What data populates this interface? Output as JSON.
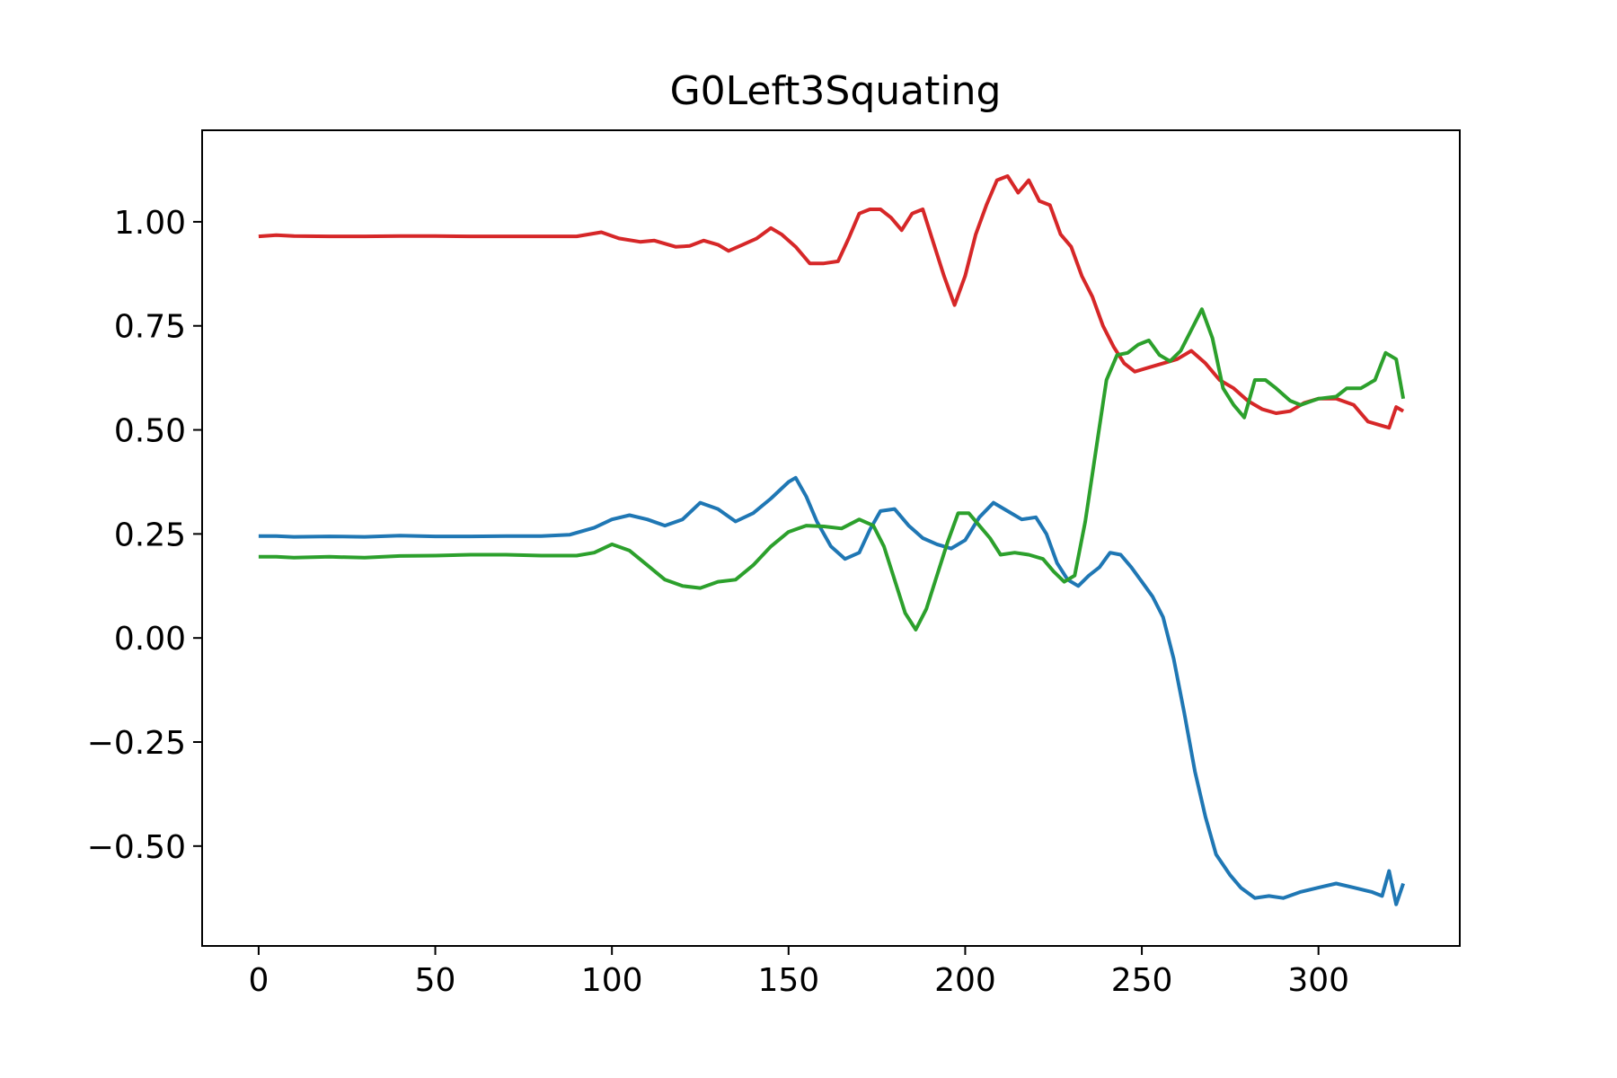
{
  "chart_data": {
    "type": "line",
    "title": "G0Left3Squating",
    "xlabel": "",
    "ylabel": "",
    "xlim": [
      -16,
      340
    ],
    "ylim": [
      -0.74,
      1.22
    ],
    "xticks": [
      0,
      50,
      100,
      150,
      200,
      250,
      300
    ],
    "xtick_labels": [
      "0",
      "50",
      "100",
      "150",
      "200",
      "250",
      "300"
    ],
    "yticks": [
      -0.5,
      -0.25,
      0.0,
      0.25,
      0.5,
      0.75,
      1.0
    ],
    "ytick_labels": [
      "−0.50",
      "−0.25",
      "0.00",
      "0.25",
      "0.50",
      "0.75",
      "1.00"
    ],
    "grid": false,
    "series": [
      {
        "color": "#1f77b4",
        "points": [
          [
            0,
            0.245
          ],
          [
            5,
            0.245
          ],
          [
            10,
            0.243
          ],
          [
            20,
            0.244
          ],
          [
            30,
            0.243
          ],
          [
            40,
            0.246
          ],
          [
            50,
            0.244
          ],
          [
            60,
            0.244
          ],
          [
            70,
            0.245
          ],
          [
            80,
            0.245
          ],
          [
            88,
            0.248
          ],
          [
            95,
            0.265
          ],
          [
            100,
            0.285
          ],
          [
            105,
            0.295
          ],
          [
            110,
            0.285
          ],
          [
            115,
            0.27
          ],
          [
            120,
            0.285
          ],
          [
            125,
            0.325
          ],
          [
            130,
            0.31
          ],
          [
            135,
            0.28
          ],
          [
            140,
            0.3
          ],
          [
            145,
            0.335
          ],
          [
            150,
            0.375
          ],
          [
            152,
            0.385
          ],
          [
            155,
            0.34
          ],
          [
            158,
            0.28
          ],
          [
            162,
            0.22
          ],
          [
            166,
            0.19
          ],
          [
            170,
            0.205
          ],
          [
            173,
            0.26
          ],
          [
            176,
            0.305
          ],
          [
            180,
            0.31
          ],
          [
            184,
            0.27
          ],
          [
            188,
            0.24
          ],
          [
            192,
            0.225
          ],
          [
            196,
            0.215
          ],
          [
            200,
            0.235
          ],
          [
            204,
            0.29
          ],
          [
            208,
            0.325
          ],
          [
            212,
            0.305
          ],
          [
            216,
            0.285
          ],
          [
            220,
            0.29
          ],
          [
            223,
            0.25
          ],
          [
            226,
            0.18
          ],
          [
            229,
            0.14
          ],
          [
            232,
            0.125
          ],
          [
            235,
            0.15
          ],
          [
            238,
            0.17
          ],
          [
            241,
            0.205
          ],
          [
            244,
            0.2
          ],
          [
            247,
            0.17
          ],
          [
            250,
            0.135
          ],
          [
            253,
            0.1
          ],
          [
            256,
            0.05
          ],
          [
            259,
            -0.05
          ],
          [
            262,
            -0.18
          ],
          [
            265,
            -0.32
          ],
          [
            268,
            -0.43
          ],
          [
            271,
            -0.52
          ],
          [
            275,
            -0.57
          ],
          [
            278,
            -0.6
          ],
          [
            282,
            -0.625
          ],
          [
            286,
            -0.62
          ],
          [
            290,
            -0.625
          ],
          [
            295,
            -0.61
          ],
          [
            300,
            -0.6
          ],
          [
            305,
            -0.59
          ],
          [
            310,
            -0.6
          ],
          [
            315,
            -0.61
          ],
          [
            318,
            -0.62
          ],
          [
            320,
            -0.56
          ],
          [
            322,
            -0.64
          ],
          [
            324,
            -0.59
          ]
        ]
      },
      {
        "color": "#d62728",
        "points": [
          [
            0,
            0.965
          ],
          [
            5,
            0.968
          ],
          [
            10,
            0.966
          ],
          [
            20,
            0.965
          ],
          [
            30,
            0.965
          ],
          [
            40,
            0.966
          ],
          [
            50,
            0.966
          ],
          [
            60,
            0.965
          ],
          [
            70,
            0.965
          ],
          [
            80,
            0.965
          ],
          [
            90,
            0.965
          ],
          [
            97,
            0.975
          ],
          [
            102,
            0.96
          ],
          [
            108,
            0.952
          ],
          [
            112,
            0.955
          ],
          [
            118,
            0.94
          ],
          [
            122,
            0.942
          ],
          [
            126,
            0.955
          ],
          [
            130,
            0.945
          ],
          [
            133,
            0.93
          ],
          [
            137,
            0.945
          ],
          [
            141,
            0.96
          ],
          [
            145,
            0.985
          ],
          [
            148,
            0.97
          ],
          [
            152,
            0.94
          ],
          [
            156,
            0.9
          ],
          [
            160,
            0.9
          ],
          [
            164,
            0.905
          ],
          [
            167,
            0.96
          ],
          [
            170,
            1.02
          ],
          [
            173,
            1.03
          ],
          [
            176,
            1.03
          ],
          [
            179,
            1.01
          ],
          [
            182,
            0.98
          ],
          [
            185,
            1.02
          ],
          [
            188,
            1.03
          ],
          [
            191,
            0.95
          ],
          [
            194,
            0.87
          ],
          [
            197,
            0.8
          ],
          [
            200,
            0.87
          ],
          [
            203,
            0.97
          ],
          [
            206,
            1.04
          ],
          [
            209,
            1.1
          ],
          [
            212,
            1.11
          ],
          [
            215,
            1.07
          ],
          [
            218,
            1.1
          ],
          [
            221,
            1.05
          ],
          [
            224,
            1.04
          ],
          [
            227,
            0.97
          ],
          [
            230,
            0.94
          ],
          [
            233,
            0.87
          ],
          [
            236,
            0.82
          ],
          [
            239,
            0.75
          ],
          [
            242,
            0.7
          ],
          [
            245,
            0.66
          ],
          [
            248,
            0.64
          ],
          [
            252,
            0.65
          ],
          [
            256,
            0.66
          ],
          [
            260,
            0.67
          ],
          [
            264,
            0.69
          ],
          [
            268,
            0.66
          ],
          [
            272,
            0.62
          ],
          [
            276,
            0.6
          ],
          [
            280,
            0.57
          ],
          [
            284,
            0.55
          ],
          [
            288,
            0.54
          ],
          [
            292,
            0.545
          ],
          [
            296,
            0.565
          ],
          [
            300,
            0.575
          ],
          [
            305,
            0.575
          ],
          [
            310,
            0.56
          ],
          [
            314,
            0.52
          ],
          [
            318,
            0.51
          ],
          [
            320,
            0.505
          ],
          [
            322,
            0.555
          ],
          [
            324,
            0.545
          ]
        ]
      },
      {
        "color": "#2ca02c",
        "points": [
          [
            0,
            0.195
          ],
          [
            5,
            0.195
          ],
          [
            10,
            0.193
          ],
          [
            20,
            0.195
          ],
          [
            30,
            0.193
          ],
          [
            40,
            0.197
          ],
          [
            50,
            0.198
          ],
          [
            60,
            0.2
          ],
          [
            70,
            0.2
          ],
          [
            80,
            0.198
          ],
          [
            90,
            0.198
          ],
          [
            95,
            0.205
          ],
          [
            100,
            0.225
          ],
          [
            105,
            0.21
          ],
          [
            110,
            0.175
          ],
          [
            115,
            0.14
          ],
          [
            120,
            0.125
          ],
          [
            125,
            0.12
          ],
          [
            130,
            0.135
          ],
          [
            135,
            0.14
          ],
          [
            140,
            0.175
          ],
          [
            145,
            0.22
          ],
          [
            150,
            0.255
          ],
          [
            155,
            0.27
          ],
          [
            160,
            0.268
          ],
          [
            165,
            0.263
          ],
          [
            170,
            0.285
          ],
          [
            174,
            0.27
          ],
          [
            177,
            0.22
          ],
          [
            180,
            0.14
          ],
          [
            183,
            0.06
          ],
          [
            186,
            0.02
          ],
          [
            189,
            0.07
          ],
          [
            192,
            0.15
          ],
          [
            195,
            0.23
          ],
          [
            198,
            0.3
          ],
          [
            201,
            0.3
          ],
          [
            204,
            0.27
          ],
          [
            207,
            0.24
          ],
          [
            210,
            0.2
          ],
          [
            214,
            0.205
          ],
          [
            218,
            0.2
          ],
          [
            222,
            0.19
          ],
          [
            225,
            0.16
          ],
          [
            228,
            0.135
          ],
          [
            231,
            0.15
          ],
          [
            234,
            0.28
          ],
          [
            237,
            0.45
          ],
          [
            240,
            0.62
          ],
          [
            243,
            0.68
          ],
          [
            246,
            0.685
          ],
          [
            249,
            0.705
          ],
          [
            252,
            0.715
          ],
          [
            255,
            0.68
          ],
          [
            258,
            0.665
          ],
          [
            261,
            0.69
          ],
          [
            264,
            0.74
          ],
          [
            267,
            0.79
          ],
          [
            270,
            0.72
          ],
          [
            273,
            0.6
          ],
          [
            276,
            0.56
          ],
          [
            279,
            0.53
          ],
          [
            282,
            0.62
          ],
          [
            285,
            0.62
          ],
          [
            288,
            0.6
          ],
          [
            292,
            0.57
          ],
          [
            295,
            0.56
          ],
          [
            300,
            0.575
          ],
          [
            305,
            0.58
          ],
          [
            308,
            0.6
          ],
          [
            312,
            0.6
          ],
          [
            316,
            0.62
          ],
          [
            319,
            0.685
          ],
          [
            322,
            0.67
          ],
          [
            324,
            0.575
          ]
        ]
      }
    ]
  }
}
